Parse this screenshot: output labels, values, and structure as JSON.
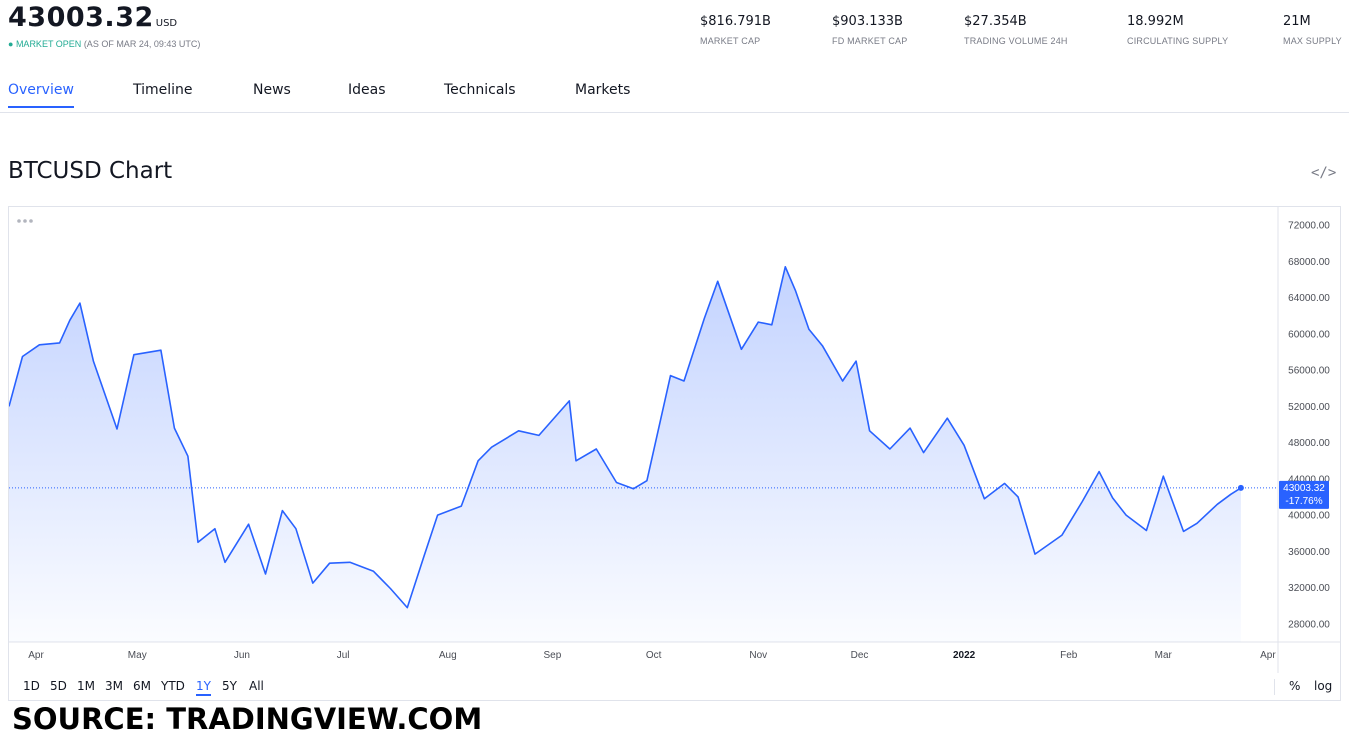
{
  "header": {
    "price": "43003.32",
    "currency": "USD",
    "market_status": "MARKET OPEN",
    "as_of": "(AS OF MAR 24, 09:43 UTC)",
    "stats": [
      {
        "value": "$816.791B",
        "label": "MARKET CAP"
      },
      {
        "value": "$903.133B",
        "label": "FD MARKET CAP"
      },
      {
        "value": "$27.354B",
        "label": "TRADING VOLUME 24H"
      },
      {
        "value": "18.992M",
        "label": "CIRCULATING SUPPLY"
      },
      {
        "value": "21M",
        "label": "MAX SUPPLY"
      }
    ]
  },
  "tabs": [
    {
      "label": "Overview",
      "active": true
    },
    {
      "label": "Timeline",
      "active": false
    },
    {
      "label": "News",
      "active": false
    },
    {
      "label": "Ideas",
      "active": false
    },
    {
      "label": "Technicals",
      "active": false
    },
    {
      "label": "Markets",
      "active": false
    }
  ],
  "chart_title": "BTCUSD Chart",
  "embed_icon": "code-embed-icon",
  "ranges": [
    {
      "label": "1D",
      "active": false
    },
    {
      "label": "5D",
      "active": false
    },
    {
      "label": "1M",
      "active": false
    },
    {
      "label": "3M",
      "active": false
    },
    {
      "label": "6M",
      "active": false
    },
    {
      "label": "YTD",
      "active": false
    },
    {
      "label": "1Y",
      "active": true
    },
    {
      "label": "5Y",
      "active": false
    },
    {
      "label": "All",
      "active": false
    }
  ],
  "scale_options": [
    "%",
    "log"
  ],
  "source_text": "SOURCE: TRADINGVIEW.COM",
  "colors": {
    "line": "#2962ff",
    "accent": "#2962ff",
    "market_open": "#22ab94",
    "muted": "#787b86"
  },
  "chart_data": {
    "type": "area",
    "symbol": "BTCUSD",
    "last_value_label": "43003.32",
    "change_label": "-17.76%",
    "last_value": 43003.32,
    "ylim": [
      26000,
      74000
    ],
    "y_ticks": [
      72000,
      68000,
      64000,
      60000,
      56000,
      52000,
      48000,
      44000,
      40000,
      36000,
      32000,
      28000
    ],
    "y_tick_labels": [
      "72000.00",
      "68000.00",
      "64000.00",
      "60000.00",
      "56000.00",
      "52000.00",
      "48000.00",
      "44000.00",
      "40000.00",
      "36000.00",
      "32000.00",
      "28000.00"
    ],
    "x_tick_labels": [
      "Apr",
      "May",
      "Jun",
      "Jul",
      "Aug",
      "Sep",
      "Oct",
      "Nov",
      "Dec",
      "2022",
      "Feb",
      "Mar",
      "Apr"
    ],
    "x_tick_dates": [
      "2021-04-01",
      "2021-05-01",
      "2021-06-01",
      "2021-07-01",
      "2021-08-01",
      "2021-09-01",
      "2021-10-01",
      "2021-11-01",
      "2021-12-01",
      "2022-01-01",
      "2022-02-01",
      "2022-03-01",
      "2022-04-01"
    ],
    "xlim": [
      "2021-03-24",
      "2022-04-04"
    ],
    "series": [
      {
        "x": [
          "2021-03-24",
          "2021-03-28",
          "2021-04-02",
          "2021-04-08",
          "2021-04-11",
          "2021-04-14",
          "2021-04-18",
          "2021-04-25",
          "2021-04-30",
          "2021-05-08",
          "2021-05-12",
          "2021-05-16",
          "2021-05-19",
          "2021-05-24",
          "2021-05-27",
          "2021-06-03",
          "2021-06-08",
          "2021-06-13",
          "2021-06-17",
          "2021-06-22",
          "2021-06-27",
          "2021-07-03",
          "2021-07-10",
          "2021-07-15",
          "2021-07-20",
          "2021-07-25",
          "2021-07-29",
          "2021-08-05",
          "2021-08-10",
          "2021-08-14",
          "2021-08-22",
          "2021-08-28",
          "2021-09-06",
          "2021-09-08",
          "2021-09-14",
          "2021-09-20",
          "2021-09-25",
          "2021-09-29",
          "2021-10-06",
          "2021-10-10",
          "2021-10-16",
          "2021-10-20",
          "2021-10-27",
          "2021-11-01",
          "2021-11-05",
          "2021-11-09",
          "2021-11-12",
          "2021-11-16",
          "2021-11-20",
          "2021-11-26",
          "2021-11-30",
          "2021-12-04",
          "2021-12-10",
          "2021-12-16",
          "2021-12-20",
          "2021-12-27",
          "2022-01-01",
          "2022-01-07",
          "2022-01-13",
          "2022-01-17",
          "2022-01-22",
          "2022-01-30",
          "2022-02-05",
          "2022-02-10",
          "2022-02-14",
          "2022-02-18",
          "2022-02-24",
          "2022-03-01",
          "2022-03-07",
          "2022-03-11",
          "2022-03-17",
          "2022-03-21",
          "2022-03-24"
        ],
        "values": [
          52000,
          57500,
          58800,
          59000,
          61500,
          63400,
          57000,
          49500,
          57700,
          58200,
          49600,
          46500,
          37000,
          38500,
          34800,
          39000,
          33500,
          40500,
          38500,
          32500,
          34700,
          34800,
          33800,
          31900,
          29800,
          35500,
          40000,
          41000,
          46000,
          47500,
          49300,
          48800,
          52600,
          46000,
          47300,
          43600,
          42900,
          43800,
          55400,
          54800,
          61700,
          65800,
          58300,
          61300,
          61000,
          67400,
          64800,
          60500,
          58700,
          54800,
          57000,
          49300,
          47300,
          49600,
          46900,
          50700,
          47700,
          41800,
          43500,
          42000,
          35700,
          37800,
          41500,
          44800,
          41900,
          40000,
          38300,
          44300,
          38200,
          39100,
          41200,
          42300,
          43003.32
        ]
      }
    ]
  }
}
